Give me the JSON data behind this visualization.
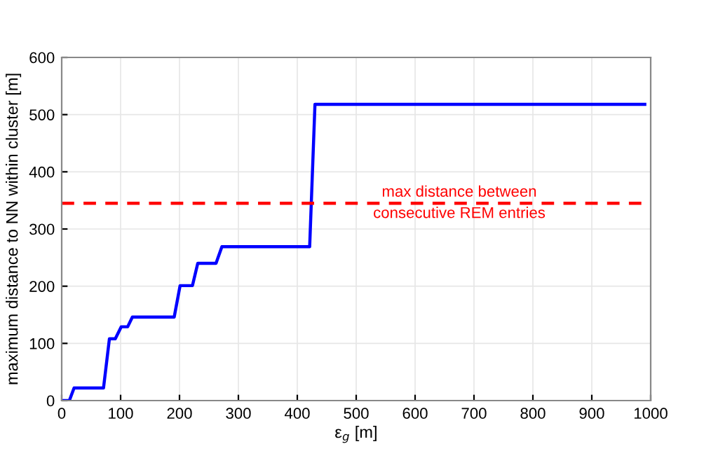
{
  "chart_data": {
    "type": "line",
    "xlabel": "ε$_{g}$ [m]",
    "ylabel": "maximum distance to NN within cluster [m]",
    "series": [
      {
        "color": "#0000ff",
        "x": [
          0,
          13,
          21,
          71,
          81,
          91,
          101,
          112,
          120,
          191,
          201,
          222,
          231,
          262,
          272,
          421,
          430,
          990
        ],
        "values": [
          0,
          0,
          22,
          22,
          108,
          108,
          129,
          129,
          146,
          146,
          201,
          201,
          240,
          240,
          269,
          269,
          518,
          518
        ]
      }
    ],
    "xlim": [
      0,
      1000
    ],
    "xticks": [
      0,
      100,
      200,
      300,
      400,
      500,
      600,
      700,
      800,
      900,
      1000
    ],
    "ylim": [
      0,
      600
    ],
    "yticks": [
      0,
      100,
      200,
      300,
      400,
      500,
      600
    ],
    "grid": true,
    "line_style": "solid",
    "marker": "none",
    "ref_lines": [
      {
        "axis": "y",
        "value": 345,
        "label": "max distance between\nconsecutive REM entries",
        "color": "#ff0000",
        "line_style": "dashed"
      }
    ]
  }
}
